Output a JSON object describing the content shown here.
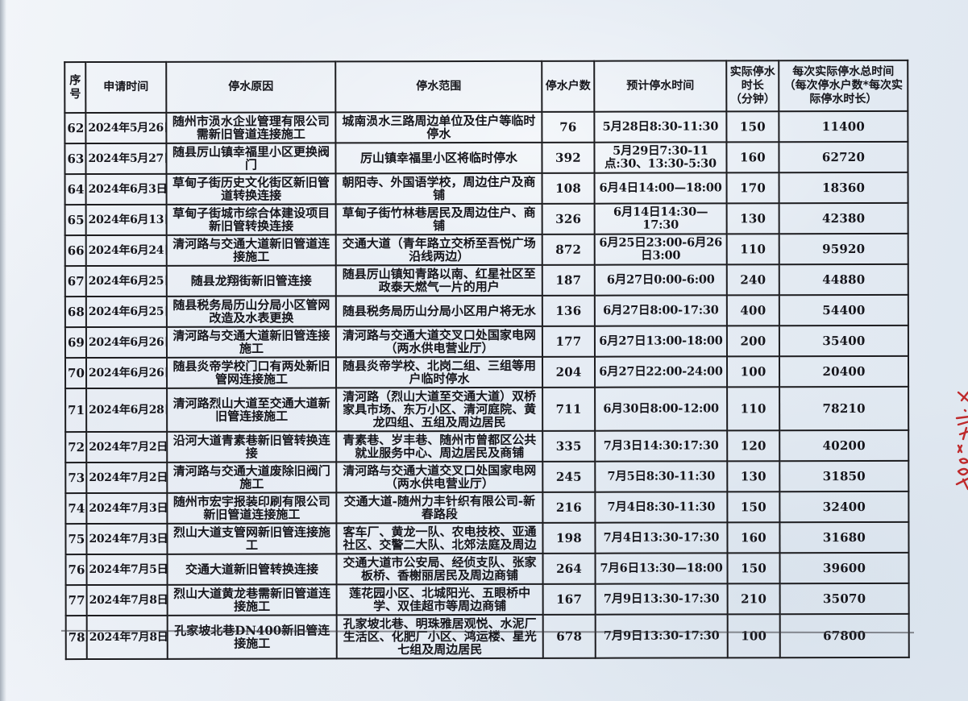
{
  "table": {
    "columns": [
      {
        "key": "no",
        "label": "序号"
      },
      {
        "key": "apply_date",
        "label": "申请时间"
      },
      {
        "key": "reason",
        "label": "停水原因"
      },
      {
        "key": "scope",
        "label": "停水范围"
      },
      {
        "key": "households",
        "label": "停水户数"
      },
      {
        "key": "planned_time",
        "label": "预计停水时间"
      },
      {
        "key": "actual_minutes",
        "label": "实际停水\n时长\n（分钟）"
      },
      {
        "key": "total_time",
        "label": "每次实际停水总时间\n（每次停水户数*每次实\n际停水时长）"
      }
    ],
    "rows": [
      [
        "62",
        "2024年5月26日",
        "随州市涢水企业管理有限公司需新旧管道连接施工",
        "城南涢水三路周边单位及住户等临时停水",
        "76",
        "5月28日8:30-11:30",
        "150",
        "11400"
      ],
      [
        "63",
        "2024年5月27日",
        "随县厉山镇幸福里小区更换阀门",
        "厉山镇幸福里小区将临时停水",
        "392",
        "5月29日7:30-11点:30、13:30-5:30",
        "160",
        "62720"
      ],
      [
        "64",
        "2024年6月3日",
        "草甸子街历史文化街区新旧管道转换连接",
        "朝阳寺、外国语学校，周边住户及商铺",
        "108",
        "6月4日14:00—18:00",
        "170",
        "18360"
      ],
      [
        "65",
        "2024年6月13日",
        "草甸子街城市综合体建设项目新旧管转换连接",
        "草甸子街竹林巷居民及周边住户、商铺",
        "326",
        "6月14日14:30—17:30",
        "130",
        "42380"
      ],
      [
        "66",
        "2024年6月24日",
        "清河路与交通大道新旧管道连接施工",
        "交通大道（青年路立交桥至吾悦广场沿线两边）",
        "872",
        "6月25日23:00-6月26日3:00",
        "110",
        "95920"
      ],
      [
        "67",
        "2024年6月25日",
        "随县龙翔街新旧管连接",
        "随县厉山镇知青路以南、红星社区至政泰天燃气一片的用户",
        "187",
        "6月27日0:00-6:00",
        "240",
        "44880"
      ],
      [
        "68",
        "2024年6月25日",
        "随县税务局历山分局小区管网改造及水表更换",
        "随县税务局历山分局小区用户将无水",
        "136",
        "6月27日8:00-17:30",
        "400",
        "54400"
      ],
      [
        "69",
        "2024年6月26日",
        "清河路与交通大道新旧管连接施工",
        "清河路与交通大道交叉口处国家电网（两水供电营业厅）",
        "177",
        "6月27日13:00-18:00",
        "200",
        "35400"
      ],
      [
        "70",
        "2024年6月26日",
        "随县炎帝学校门口有两处新旧管网连接施工",
        "随县炎帝学校、北岗二组、三组等用户临时停水",
        "204",
        "6月27日22:00-24:00",
        "100",
        "20400"
      ],
      [
        "71",
        "2024年6月28日",
        "清河路烈山大道至交通大道新旧管连接施工",
        "清河路（烈山大道至交通大道）双桥家具市场、东万小区、清河庭院、黄龙四组、五组及周边居民",
        "711",
        "6月30日8:00-12:00",
        "110",
        "78210"
      ],
      [
        "72",
        "2024年7月2日",
        "沿河大道青素巷新旧管转换连接",
        "青素巷、岁丰巷、随州市曾都区公共就业服务中心、周边居民及商铺",
        "335",
        "7月3日14:30:17:30",
        "120",
        "40200"
      ],
      [
        "73",
        "2024年7月2日",
        "清河路与交通大道废除旧阀门施工",
        "清河路与交通大道交叉口处国家电网（两水供电营业厅）",
        "245",
        "7月5日8:30-11:30",
        "130",
        "31850"
      ],
      [
        "74",
        "2024年7月3日",
        "随州市宏宇报装印刷有限公司新旧管道连接施工",
        "交通大道-随州力丰针织有限公司-新春路段",
        "216",
        "7月4日8:30-11:30",
        "150",
        "32400"
      ],
      [
        "75",
        "2024年7月3日",
        "烈山大道支管网新旧管连接施工",
        "客车厂、黄龙一队、农电技校、亚通社区、交警二大队、北郊法庭及周边",
        "198",
        "7月4日13:30-17:30",
        "160",
        "31680"
      ],
      [
        "76",
        "2024年7月5日",
        "交通大道新旧管转换连接",
        "交通大道市公安局、经侦支队、张家板桥、香榭丽居民及周边商铺",
        "264",
        "7月6日13:30—18:00",
        "150",
        "39600"
      ],
      [
        "77",
        "2024年7月8日",
        "烈山大道黄龙巷需新旧管道连接施工",
        "莲花园小区、北城阳光、五眼桥中学、双佳超市等周边商铺",
        "167",
        "7月9日13:30-17:30",
        "210",
        "35070"
      ],
      [
        "78",
        "2024年7月8日",
        "孔家坡北巷DN400新旧管连接施工",
        "孔家坡北巷、明珠雅居观悦、水泥厂生活区、化肥厂小区、鸿运楼、星光七组及周边居民",
        "678",
        "7月9日13:30-17:30",
        "100",
        "67800"
      ]
    ]
  },
  "marginalia": {
    "red_mark": "red handwritten annotation, partially cut off at right page edge"
  },
  "colors": {
    "ink": "#16161c",
    "grid": "#1d1d20",
    "paper": "#e8eef5",
    "annotation_red": "#bf2a2c"
  }
}
